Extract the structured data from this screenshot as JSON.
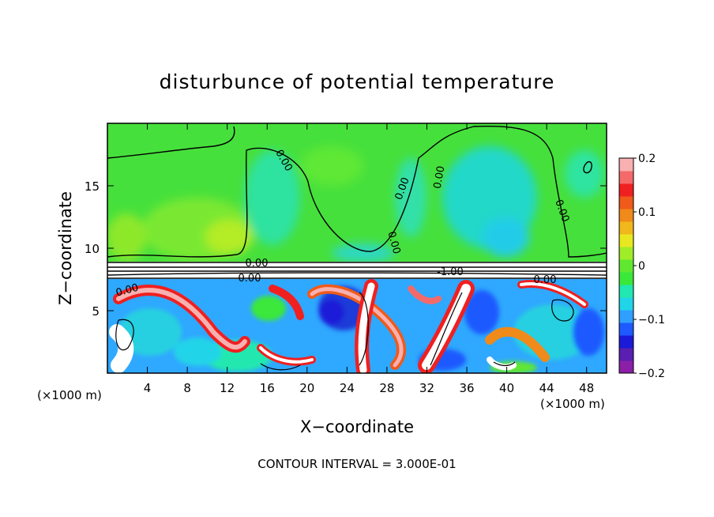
{
  "chart_data": {
    "type": "heatmap",
    "title": "disturbunce of potential temperature",
    "xlabel": "X−coordinate",
    "ylabel": "Z−coordinate",
    "x_unit_left": "(×1000 m)",
    "x_unit_right": "(×1000 m)",
    "xlim": [
      0,
      50
    ],
    "ylim": [
      0,
      20
    ],
    "x_ticks": [
      4,
      8,
      12,
      16,
      20,
      24,
      28,
      32,
      36,
      40,
      44,
      48
    ],
    "y_ticks": [
      5,
      10,
      15
    ],
    "colorbar": {
      "min": -0.2,
      "max": 0.2,
      "ticks": [
        {
          "value": 0.2,
          "label": "0.2"
        },
        {
          "value": 0.1,
          "label": "0.1"
        },
        {
          "value": 0,
          "label": "0"
        },
        {
          "value": -0.1,
          "label": "−0.1"
        },
        {
          "value": -0.2,
          "label": "−0.2"
        }
      ],
      "colors": [
        "#8b1fa8",
        "#5a1fb0",
        "#1a1ad8",
        "#1e5aff",
        "#2fa0ff",
        "#22d4e8",
        "#20e8b0",
        "#3ae83a",
        "#60e830",
        "#a0ec28",
        "#e8e820",
        "#f0b81a",
        "#f08a1a",
        "#f05a1a",
        "#f02020",
        "#f46a6a",
        "#f8b0b0"
      ]
    },
    "contour_labels": [
      "0.00",
      "0.00",
      "0.00",
      "0.00",
      "0.00",
      "0.00",
      "0.00",
      "0.00",
      "0.00",
      "-1.00"
    ],
    "annotations": [
      "CONTOUR INTERVAL = 3.000E-01"
    ]
  }
}
